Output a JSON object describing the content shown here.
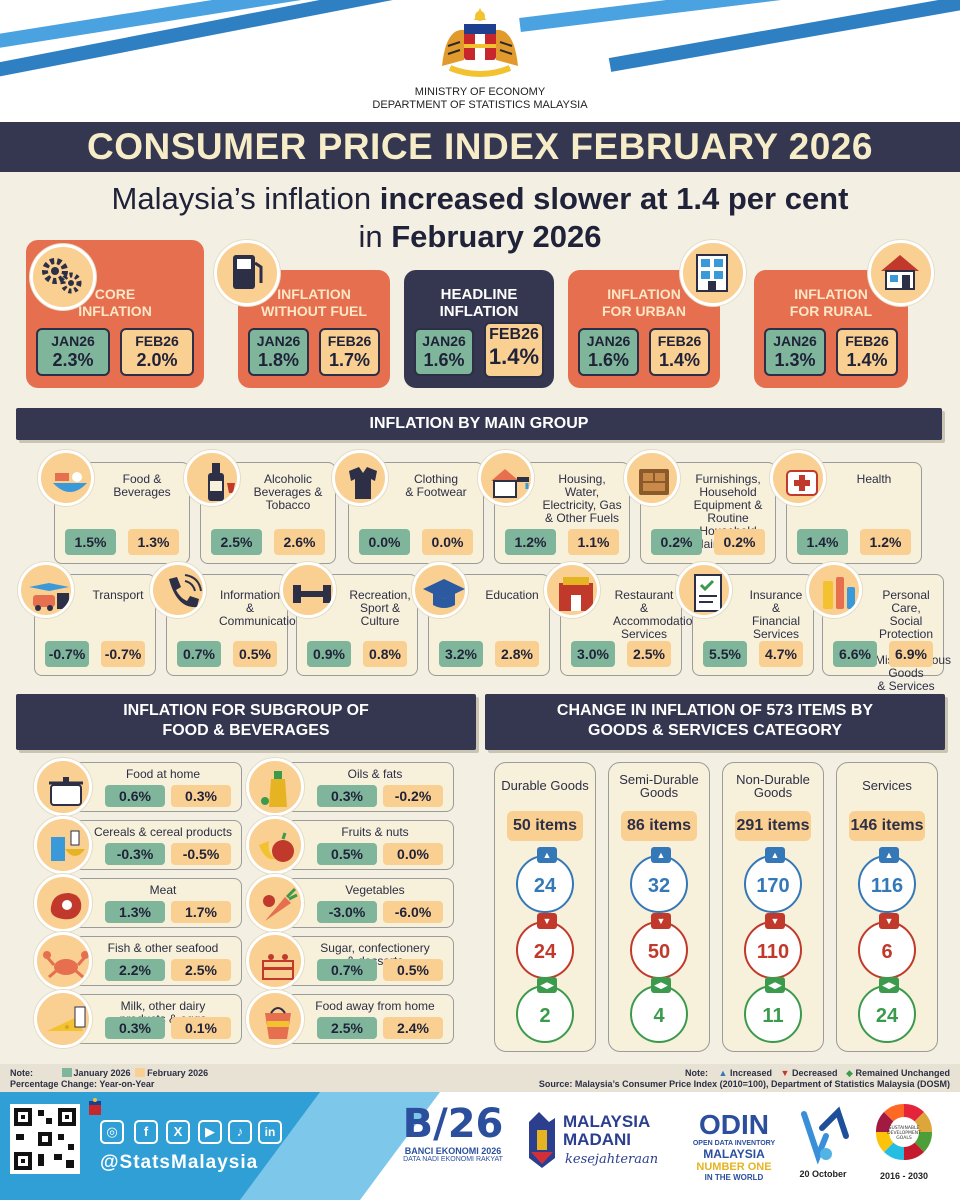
{
  "header": {
    "ministry_line1": "MINISTRY OF ECONOMY",
    "ministry_line2": "DEPARTMENT OF STATISTICS MALAYSIA",
    "title": "CONSUMER PRICE INDEX FEBRUARY 2026",
    "headline_a": "Malaysia’s inflation ",
    "headline_b": "increased slower at 1.4 per cent",
    "headline_c": "in ",
    "headline_d": "February 2026"
  },
  "colors": {
    "navy": "#34374f",
    "coral": "#e56f4e",
    "green": "#7fb69b",
    "peach": "#f9cf92",
    "up": "#3478b8",
    "down": "#c0392b",
    "same": "#3c9a4c"
  },
  "cards": [
    {
      "title1": "CORE",
      "title2": "INFLATION",
      "jan_label": "JAN26",
      "jan": "2.3%",
      "feb_label": "FEB26",
      "feb": "2.0%",
      "icon": "gears-icon"
    },
    {
      "title1": "INFLATION",
      "title2": "WITHOUT FUEL",
      "jan_label": "JAN26",
      "jan": "1.8%",
      "feb_label": "FEB26",
      "feb": "1.7%",
      "icon": "fuel-pump-icon"
    },
    {
      "title1": "HEADLINE",
      "title2": "INFLATION",
      "jan_label": "JAN26",
      "jan": "1.6%",
      "feb_label": "FEB26",
      "feb": "1.4%",
      "icon": ""
    },
    {
      "title1": "INFLATION",
      "title2": "FOR URBAN",
      "jan_label": "JAN26",
      "jan": "1.6%",
      "feb_label": "FEB26",
      "feb": "1.4%",
      "icon": "building-icon"
    },
    {
      "title1": "INFLATION",
      "title2": "FOR RURAL",
      "jan_label": "JAN26",
      "jan": "1.3%",
      "feb_label": "FEB26",
      "feb": "1.4%",
      "icon": "house-icon"
    }
  ],
  "main_group_title": "INFLATION BY MAIN GROUP",
  "groups_row1": [
    {
      "name": "Food &\nBeverages",
      "jan": "1.5%",
      "feb": "1.3%",
      "icon": "food-bowl-icon"
    },
    {
      "name": "Alcoholic\nBeverages &\nTobacco",
      "jan": "2.5%",
      "feb": "2.6%",
      "icon": "wine-bottle-icon"
    },
    {
      "name": "Clothing\n& Footwear",
      "jan": "0.0%",
      "feb": "0.0%",
      "icon": "clothing-icon"
    },
    {
      "name": "Housing, Water,\nElectricity, Gas\n& Other Fuels",
      "jan": "1.2%",
      "feb": "1.1%",
      "icon": "house-tap-icon"
    },
    {
      "name": "Furnishings,\nHousehold\nEquipment & Routine\nHousehold Maintenance",
      "jan": "0.2%",
      "feb": "0.2%",
      "icon": "furniture-icon"
    },
    {
      "name": "Health",
      "jan": "1.4%",
      "feb": "1.2%",
      "icon": "health-kit-icon"
    }
  ],
  "groups_row2": [
    {
      "name": "Transport",
      "jan": "-0.7%",
      "feb": "-0.7%",
      "icon": "transport-icon"
    },
    {
      "name": "Information\n& Communication",
      "jan": "0.7%",
      "feb": "0.5%",
      "icon": "phone-icon"
    },
    {
      "name": "Recreation,\nSport & Culture",
      "jan": "0.9%",
      "feb": "0.8%",
      "icon": "dumbbell-icon"
    },
    {
      "name": "Education",
      "jan": "3.2%",
      "feb": "2.8%",
      "icon": "graduation-cap-icon"
    },
    {
      "name": "Restaurant &\nAccommodation\nServices",
      "jan": "3.0%",
      "feb": "2.5%",
      "icon": "restaurant-icon"
    },
    {
      "name": "Insurance &\nFinancial\nServices",
      "jan": "5.5%",
      "feb": "4.7%",
      "icon": "document-icon"
    },
    {
      "name": "Personal Care,\nSocial Protection &\nMiscellaneous Goods\n& Services",
      "jan": "6.6%",
      "feb": "6.9%",
      "icon": "personal-care-icon"
    }
  ],
  "subgroup_title_1": "INFLATION FOR SUBGROUP OF",
  "subgroup_title_2": "FOOD & BEVERAGES",
  "subgroups_left": [
    {
      "name": "Food at home",
      "jan": "0.6%",
      "feb": "0.3%",
      "icon": "cooking-pot-icon"
    },
    {
      "name": "Cereals & cereal products",
      "jan": "-0.3%",
      "feb": "-0.5%",
      "icon": "cereal-icon"
    },
    {
      "name": "Meat",
      "jan": "1.3%",
      "feb": "1.7%",
      "icon": "meat-icon"
    },
    {
      "name": "Fish & other seafood",
      "jan": "2.2%",
      "feb": "2.5%",
      "icon": "crab-icon"
    },
    {
      "name": "Milk, other dairy\nproducts & eggs",
      "jan": "0.3%",
      "feb": "0.1%",
      "icon": "cheese-icon"
    }
  ],
  "subgroups_right": [
    {
      "name": "Oils & fats",
      "jan": "0.3%",
      "feb": "-0.2%",
      "icon": "oil-bottle-icon"
    },
    {
      "name": "Fruits & nuts",
      "jan": "0.5%",
      "feb": "0.0%",
      "icon": "fruit-icon"
    },
    {
      "name": "Vegetables",
      "jan": "-3.0%",
      "feb": "-6.0%",
      "icon": "carrot-icon"
    },
    {
      "name": "Sugar, confectionery\n& desserts",
      "jan": "0.7%",
      "feb": "0.5%",
      "icon": "cake-icon"
    },
    {
      "name": "Food away from home",
      "jan": "2.5%",
      "feb": "2.4%",
      "icon": "takeaway-icon"
    }
  ],
  "items_title_1": "CHANGE IN INFLATION OF 573 ITEMS BY",
  "items_title_2": "GOODS & SERVICES CATEGORY",
  "item_columns": [
    {
      "name": "Durable Goods",
      "items": "50 items",
      "increased": "24",
      "decreased": "24",
      "unchanged": "2"
    },
    {
      "name": "Semi-Durable\nGoods",
      "items": "86 items",
      "increased": "32",
      "decreased": "50",
      "unchanged": "4"
    },
    {
      "name": "Non-Durable\nGoods",
      "items": "291 items",
      "increased": "170",
      "decreased": "110",
      "unchanged": "11"
    },
    {
      "name": "Services",
      "items": "146 items",
      "increased": "116",
      "decreased": "6",
      "unchanged": "24"
    }
  ],
  "notes": {
    "note_label": "Note:",
    "jan_legend": "January 2026",
    "feb_legend": "February 2026",
    "pct": "Percentage Change: Year-on-Year",
    "note_label_r": "Note:",
    "increased": "Increased",
    "decreased": "Decreased",
    "unchanged": "Remained Unchanged",
    "source": "Source: Malaysia’s Consumer Price Index (2010=100), Department of Statistics Malaysia (DOSM)"
  },
  "footer": {
    "handle": "@StatsMalaysia",
    "banci_title": "BANCI EKONOMI 2026",
    "banci_sub": "DATA NADI EKONOMI RAKYAT",
    "madani_1": "MALAYSIA",
    "madani_2": "MADANI",
    "madani_3": "kesejahteraan",
    "odin_1": "OPEN DATA INVENTORY",
    "odin_2": "MALAYSIA",
    "odin_3": "NUMBER ONE",
    "odin_4": "IN THE WORLD",
    "wsd_date": "20 October",
    "sdg_years": "2016 - 2030",
    "sdg_1": "SUSTAINABLE",
    "sdg_2": "DEVELOPMENT",
    "sdg_3": "GOALS"
  }
}
